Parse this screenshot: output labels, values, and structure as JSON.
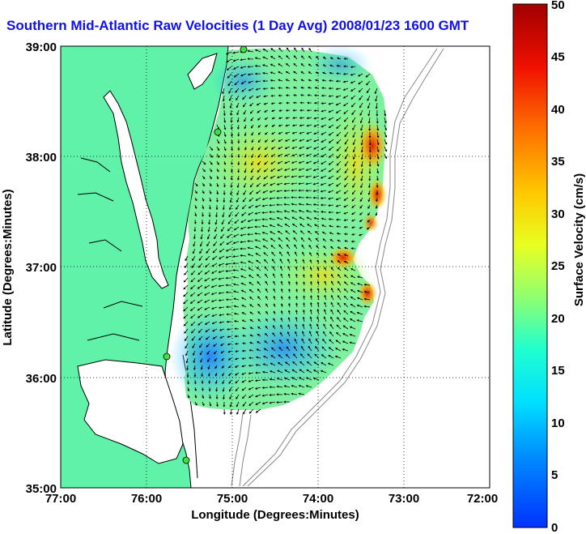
{
  "title": "Southern Mid-Atlantic Raw Velocities (1 Day Avg) 2008/01/23 1600 GMT",
  "map": {
    "xlabel": "Longitude (Degrees:Minutes)",
    "ylabel": "Latitude (Degrees:Minutes)",
    "x_ticks": [
      "77:00",
      "76:00",
      "75:00",
      "74:00",
      "73:00",
      "72:00"
    ],
    "y_ticks": [
      "39:00",
      "38:00",
      "37:00",
      "36:00",
      "35:00"
    ],
    "land_color": "#5ff2a8",
    "water_color": "#ffffff"
  },
  "colorbar": {
    "label": "Surface Velocity (cm/s)",
    "ticks": [
      "50",
      "45",
      "40",
      "35",
      "30",
      "25",
      "20",
      "15",
      "10",
      "5",
      "0"
    ],
    "colors": [
      "#0032ff",
      "#00b4ff",
      "#00ffe0",
      "#80ff80",
      "#e8ff20",
      "#ffb400",
      "#ff4000",
      "#b00000"
    ]
  }
}
